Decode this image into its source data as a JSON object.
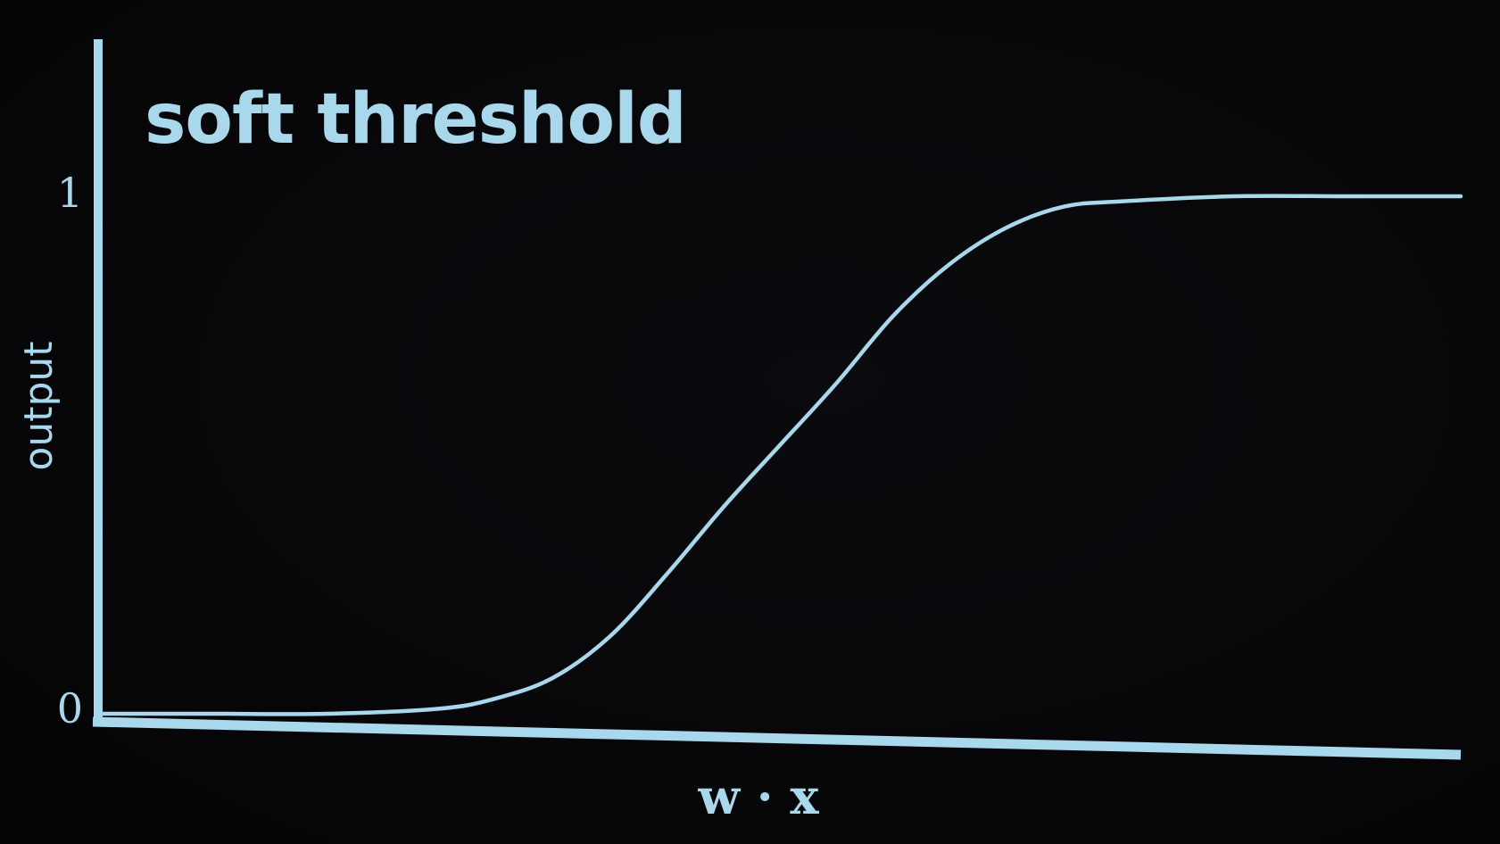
{
  "chart_data": {
    "type": "line",
    "title": "soft threshold",
    "xlabel": "w · x",
    "ylabel": "output",
    "y_ticks": [
      "0",
      "1"
    ],
    "ylim": [
      0,
      1
    ],
    "xlim": [
      -6,
      6
    ],
    "grid": false,
    "series": [
      {
        "x": [
          -6,
          -5,
          -4,
          -3,
          -2.5,
          -2,
          -1.5,
          -1,
          -0.5,
          0,
          0.5,
          1,
          1.5,
          2,
          2.5,
          3,
          4,
          5,
          6
        ],
        "y": [
          0,
          0,
          0,
          0.01,
          0.03,
          0.07,
          0.15,
          0.27,
          0.4,
          0.52,
          0.64,
          0.77,
          0.87,
          0.94,
          0.98,
          0.99,
          1,
          1,
          1
        ]
      }
    ]
  },
  "colors": {
    "foreground": "#a9d8ec",
    "background": "#070709"
  }
}
